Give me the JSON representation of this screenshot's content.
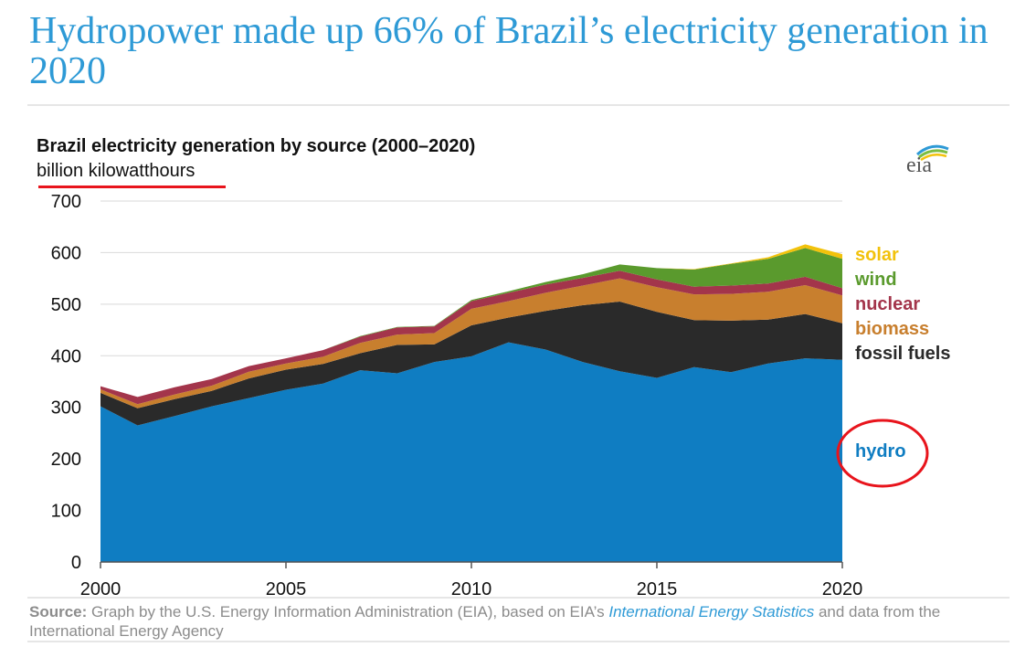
{
  "headline": "Hydropower made up 66% of Brazil’s electricity generation in 2020",
  "logo_text": "eia",
  "source": {
    "label": "Source:",
    "text_before": " Graph by the U.S. Energy Information Administration (EIA), based on EIA’s ",
    "link": "International Energy Statistics",
    "text_after": " and data from the International Energy Agency"
  },
  "annotation_color": "#e8141c",
  "chart_data": {
    "type": "area",
    "stacked": true,
    "title": "Brazil electricity generation by source (2000–2020)",
    "ylabel": "billion kilowatthours",
    "xlim": [
      2000,
      2020
    ],
    "ylim": [
      0,
      700
    ],
    "x_ticks": [
      2000,
      2005,
      2010,
      2015,
      2020
    ],
    "y_ticks": [
      0,
      100,
      200,
      300,
      400,
      500,
      600,
      700
    ],
    "grid": "horizontal",
    "legend": "right, direct labels",
    "x": [
      2000,
      2001,
      2002,
      2003,
      2004,
      2005,
      2006,
      2007,
      2008,
      2009,
      2010,
      2011,
      2012,
      2013,
      2014,
      2015,
      2016,
      2017,
      2018,
      2019,
      2020
    ],
    "series": [
      {
        "name": "hydro",
        "color": "#0f7dc2",
        "values": [
          302,
          265,
          283,
          302,
          318,
          334,
          346,
          372,
          366,
          388,
          399,
          426,
          412,
          388,
          370,
          357,
          378,
          368,
          385,
          395,
          392
        ]
      },
      {
        "name": "fossil fuels",
        "color": "#2a2a2a",
        "values": [
          26,
          33,
          33,
          30,
          38,
          39,
          38,
          33,
          55,
          34,
          60,
          48,
          75,
          110,
          135,
          128,
          91,
          100,
          85,
          86,
          71
        ]
      },
      {
        "name": "biomass",
        "color": "#c87f2e",
        "values": [
          7,
          8,
          9,
          10,
          13,
          12,
          14,
          20,
          20,
          22,
          32,
          32,
          35,
          38,
          45,
          48,
          50,
          52,
          54,
          56,
          54
        ]
      },
      {
        "name": "nuclear",
        "color": "#a3354b",
        "values": [
          6,
          14,
          14,
          13,
          11,
          10,
          13,
          12,
          14,
          13,
          15,
          16,
          16,
          15,
          15,
          15,
          15,
          16,
          16,
          16,
          14
        ]
      },
      {
        "name": "wind",
        "color": "#5a9a2d",
        "values": [
          0,
          0,
          0,
          0,
          0,
          0,
          0,
          1,
          1,
          1,
          2,
          3,
          5,
          7,
          12,
          22,
          33,
          42,
          48,
          56,
          57
        ]
      },
      {
        "name": "solar",
        "color": "#f2c20c",
        "values": [
          0,
          0,
          0,
          0,
          0,
          0,
          0,
          0,
          0,
          0,
          0,
          0,
          0,
          0,
          0,
          0,
          1,
          1,
          3,
          7,
          9
        ]
      }
    ],
    "highlight": "hydro"
  }
}
